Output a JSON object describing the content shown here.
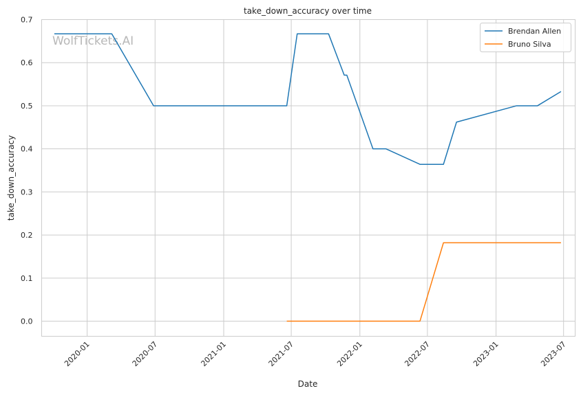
{
  "chart_data": {
    "type": "line",
    "title": "take_down_accuracy over time",
    "xlabel": "Date",
    "ylabel": "take_down_accuracy",
    "watermark": "WolfTickets.AI",
    "x_range": [
      "2019-09-01",
      "2023-08-01"
    ],
    "ylim": [
      -0.035,
      0.7
    ],
    "grid": true,
    "legend_position": "top-right",
    "x_ticks": [
      {
        "date": "2020-01-01",
        "label": "2020-01"
      },
      {
        "date": "2020-07-01",
        "label": "2020-07"
      },
      {
        "date": "2021-01-01",
        "label": "2021-01"
      },
      {
        "date": "2021-07-01",
        "label": "2021-07"
      },
      {
        "date": "2022-01-01",
        "label": "2022-01"
      },
      {
        "date": "2022-07-01",
        "label": "2022-07"
      },
      {
        "date": "2023-01-01",
        "label": "2023-01"
      },
      {
        "date": "2023-07-01",
        "label": "2023-07"
      }
    ],
    "y_ticks": [
      {
        "value": 0.0,
        "label": "0.0"
      },
      {
        "value": 0.1,
        "label": "0.1"
      },
      {
        "value": 0.2,
        "label": "0.2"
      },
      {
        "value": 0.3,
        "label": "0.3"
      },
      {
        "value": 0.4,
        "label": "0.4"
      },
      {
        "value": 0.5,
        "label": "0.5"
      },
      {
        "value": 0.6,
        "label": "0.6"
      },
      {
        "value": 0.7,
        "label": "0.7"
      }
    ],
    "series": [
      {
        "name": "Brendan Allen",
        "color": "#1f77b4",
        "points": [
          {
            "x": "2019-10-05",
            "y": 0.667
          },
          {
            "x": "2020-03-07",
            "y": 0.667
          },
          {
            "x": "2020-06-27",
            "y": 0.5
          },
          {
            "x": "2021-06-19",
            "y": 0.5
          },
          {
            "x": "2021-07-17",
            "y": 0.667
          },
          {
            "x": "2021-10-09",
            "y": 0.667
          },
          {
            "x": "2021-11-20",
            "y": 0.571
          },
          {
            "x": "2021-11-27",
            "y": 0.571
          },
          {
            "x": "2022-02-05",
            "y": 0.4
          },
          {
            "x": "2022-03-12",
            "y": 0.4
          },
          {
            "x": "2022-06-11",
            "y": 0.364
          },
          {
            "x": "2022-08-13",
            "y": 0.364
          },
          {
            "x": "2022-09-17",
            "y": 0.462
          },
          {
            "x": "2023-02-25",
            "y": 0.5
          },
          {
            "x": "2023-04-22",
            "y": 0.5
          },
          {
            "x": "2023-06-24",
            "y": 0.533
          }
        ]
      },
      {
        "name": "Bruno Silva",
        "color": "#ff7f0e",
        "points": [
          {
            "x": "2021-06-19",
            "y": 0.0
          },
          {
            "x": "2022-06-11",
            "y": 0.0
          },
          {
            "x": "2022-08-13",
            "y": 0.182
          },
          {
            "x": "2023-06-24",
            "y": 0.182
          }
        ]
      }
    ]
  }
}
